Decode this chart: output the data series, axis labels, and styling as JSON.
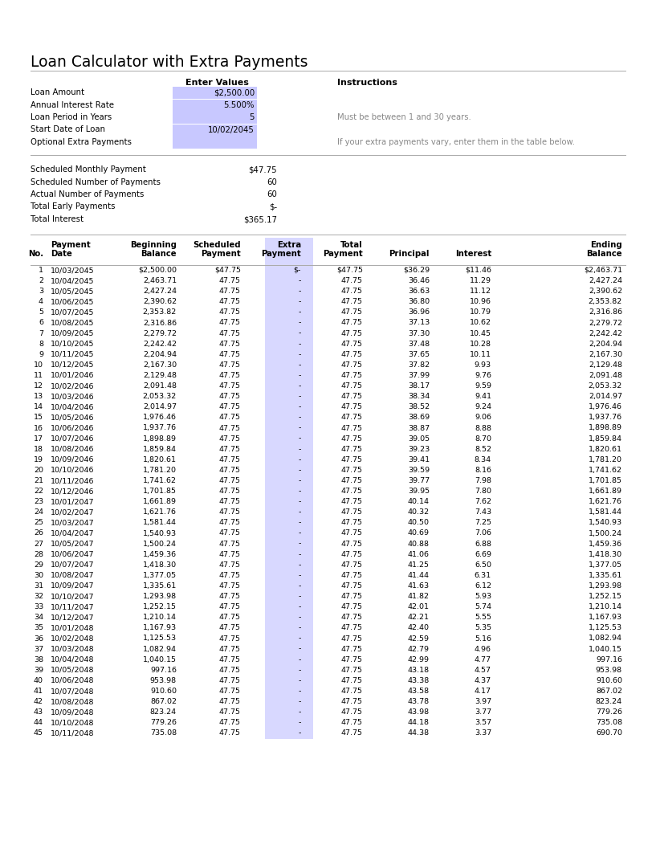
{
  "title": "Loan Calculator with Extra Payments",
  "loan_amount": "$2,500.00",
  "annual_interest_rate": "5.500%",
  "loan_period_years": "5",
  "start_date": "10/02/2045",
  "optional_extra_payments": "",
  "instructions_title": "Instructions",
  "instructions_1": "Must be between 1 and 30 years.",
  "instructions_2": "If your extra payments vary, enter them in the table below.",
  "scheduled_monthly_payment": "$47.75",
  "scheduled_number_of_payments": "60",
  "actual_number_of_payments": "60",
  "total_early_payments": "$-",
  "total_interest": "$365.17",
  "rows": [
    [
      1,
      "10/03/2045",
      "$2,500.00",
      "$47.75",
      "$-",
      "$47.75",
      "$36.29",
      "$11.46",
      "$2,463.71"
    ],
    [
      2,
      "10/04/2045",
      "2,463.71",
      "47.75",
      "-",
      "47.75",
      "36.46",
      "11.29",
      "2,427.24"
    ],
    [
      3,
      "10/05/2045",
      "2,427.24",
      "47.75",
      "-",
      "47.75",
      "36.63",
      "11.12",
      "2,390.62"
    ],
    [
      4,
      "10/06/2045",
      "2,390.62",
      "47.75",
      "-",
      "47.75",
      "36.80",
      "10.96",
      "2,353.82"
    ],
    [
      5,
      "10/07/2045",
      "2,353.82",
      "47.75",
      "-",
      "47.75",
      "36.96",
      "10.79",
      "2,316.86"
    ],
    [
      6,
      "10/08/2045",
      "2,316.86",
      "47.75",
      "-",
      "47.75",
      "37.13",
      "10.62",
      "2,279.72"
    ],
    [
      7,
      "10/09/2045",
      "2,279.72",
      "47.75",
      "-",
      "47.75",
      "37.30",
      "10.45",
      "2,242.42"
    ],
    [
      8,
      "10/10/2045",
      "2,242.42",
      "47.75",
      "-",
      "47.75",
      "37.48",
      "10.28",
      "2,204.94"
    ],
    [
      9,
      "10/11/2045",
      "2,204.94",
      "47.75",
      "-",
      "47.75",
      "37.65",
      "10.11",
      "2,167.30"
    ],
    [
      10,
      "10/12/2045",
      "2,167.30",
      "47.75",
      "-",
      "47.75",
      "37.82",
      "9.93",
      "2,129.48"
    ],
    [
      11,
      "10/01/2046",
      "2,129.48",
      "47.75",
      "-",
      "47.75",
      "37.99",
      "9.76",
      "2,091.48"
    ],
    [
      12,
      "10/02/2046",
      "2,091.48",
      "47.75",
      "-",
      "47.75",
      "38.17",
      "9.59",
      "2,053.32"
    ],
    [
      13,
      "10/03/2046",
      "2,053.32",
      "47.75",
      "-",
      "47.75",
      "38.34",
      "9.41",
      "2,014.97"
    ],
    [
      14,
      "10/04/2046",
      "2,014.97",
      "47.75",
      "-",
      "47.75",
      "38.52",
      "9.24",
      "1,976.46"
    ],
    [
      15,
      "10/05/2046",
      "1,976.46",
      "47.75",
      "-",
      "47.75",
      "38.69",
      "9.06",
      "1,937.76"
    ],
    [
      16,
      "10/06/2046",
      "1,937.76",
      "47.75",
      "-",
      "47.75",
      "38.87",
      "8.88",
      "1,898.89"
    ],
    [
      17,
      "10/07/2046",
      "1,898.89",
      "47.75",
      "-",
      "47.75",
      "39.05",
      "8.70",
      "1,859.84"
    ],
    [
      18,
      "10/08/2046",
      "1,859.84",
      "47.75",
      "-",
      "47.75",
      "39.23",
      "8.52",
      "1,820.61"
    ],
    [
      19,
      "10/09/2046",
      "1,820.61",
      "47.75",
      "-",
      "47.75",
      "39.41",
      "8.34",
      "1,781.20"
    ],
    [
      20,
      "10/10/2046",
      "1,781.20",
      "47.75",
      "-",
      "47.75",
      "39.59",
      "8.16",
      "1,741.62"
    ],
    [
      21,
      "10/11/2046",
      "1,741.62",
      "47.75",
      "-",
      "47.75",
      "39.77",
      "7.98",
      "1,701.85"
    ],
    [
      22,
      "10/12/2046",
      "1,701.85",
      "47.75",
      "-",
      "47.75",
      "39.95",
      "7.80",
      "1,661.89"
    ],
    [
      23,
      "10/01/2047",
      "1,661.89",
      "47.75",
      "-",
      "47.75",
      "40.14",
      "7.62",
      "1,621.76"
    ],
    [
      24,
      "10/02/2047",
      "1,621.76",
      "47.75",
      "-",
      "47.75",
      "40.32",
      "7.43",
      "1,581.44"
    ],
    [
      25,
      "10/03/2047",
      "1,581.44",
      "47.75",
      "-",
      "47.75",
      "40.50",
      "7.25",
      "1,540.93"
    ],
    [
      26,
      "10/04/2047",
      "1,540.93",
      "47.75",
      "-",
      "47.75",
      "40.69",
      "7.06",
      "1,500.24"
    ],
    [
      27,
      "10/05/2047",
      "1,500.24",
      "47.75",
      "-",
      "47.75",
      "40.88",
      "6.88",
      "1,459.36"
    ],
    [
      28,
      "10/06/2047",
      "1,459.36",
      "47.75",
      "-",
      "47.75",
      "41.06",
      "6.69",
      "1,418.30"
    ],
    [
      29,
      "10/07/2047",
      "1,418.30",
      "47.75",
      "-",
      "47.75",
      "41.25",
      "6.50",
      "1,377.05"
    ],
    [
      30,
      "10/08/2047",
      "1,377.05",
      "47.75",
      "-",
      "47.75",
      "41.44",
      "6.31",
      "1,335.61"
    ],
    [
      31,
      "10/09/2047",
      "1,335.61",
      "47.75",
      "-",
      "47.75",
      "41.63",
      "6.12",
      "1,293.98"
    ],
    [
      32,
      "10/10/2047",
      "1,293.98",
      "47.75",
      "-",
      "47.75",
      "41.82",
      "5.93",
      "1,252.15"
    ],
    [
      33,
      "10/11/2047",
      "1,252.15",
      "47.75",
      "-",
      "47.75",
      "42.01",
      "5.74",
      "1,210.14"
    ],
    [
      34,
      "10/12/2047",
      "1,210.14",
      "47.75",
      "-",
      "47.75",
      "42.21",
      "5.55",
      "1,167.93"
    ],
    [
      35,
      "10/01/2048",
      "1,167.93",
      "47.75",
      "-",
      "47.75",
      "42.40",
      "5.35",
      "1,125.53"
    ],
    [
      36,
      "10/02/2048",
      "1,125.53",
      "47.75",
      "-",
      "47.75",
      "42.59",
      "5.16",
      "1,082.94"
    ],
    [
      37,
      "10/03/2048",
      "1,082.94",
      "47.75",
      "-",
      "47.75",
      "42.79",
      "4.96",
      "1,040.15"
    ],
    [
      38,
      "10/04/2048",
      "1,040.15",
      "47.75",
      "-",
      "47.75",
      "42.99",
      "4.77",
      "997.16"
    ],
    [
      39,
      "10/05/2048",
      "997.16",
      "47.75",
      "-",
      "47.75",
      "43.18",
      "4.57",
      "953.98"
    ],
    [
      40,
      "10/06/2048",
      "953.98",
      "47.75",
      "-",
      "47.75",
      "43.38",
      "4.37",
      "910.60"
    ],
    [
      41,
      "10/07/2048",
      "910.60",
      "47.75",
      "-",
      "47.75",
      "43.58",
      "4.17",
      "867.02"
    ],
    [
      42,
      "10/08/2048",
      "867.02",
      "47.75",
      "-",
      "47.75",
      "43.78",
      "3.97",
      "823.24"
    ],
    [
      43,
      "10/09/2048",
      "823.24",
      "47.75",
      "-",
      "47.75",
      "43.98",
      "3.77",
      "779.26"
    ],
    [
      44,
      "10/10/2048",
      "779.26",
      "47.75",
      "-",
      "47.75",
      "44.18",
      "3.57",
      "735.08"
    ],
    [
      45,
      "10/11/2048",
      "735.08",
      "47.75",
      "-",
      "47.75",
      "44.38",
      "3.37",
      "690.70"
    ]
  ],
  "input_bg_color": "#c8c8ff",
  "extra_col_bg": "#d8d8ff",
  "line_color": "#999999"
}
